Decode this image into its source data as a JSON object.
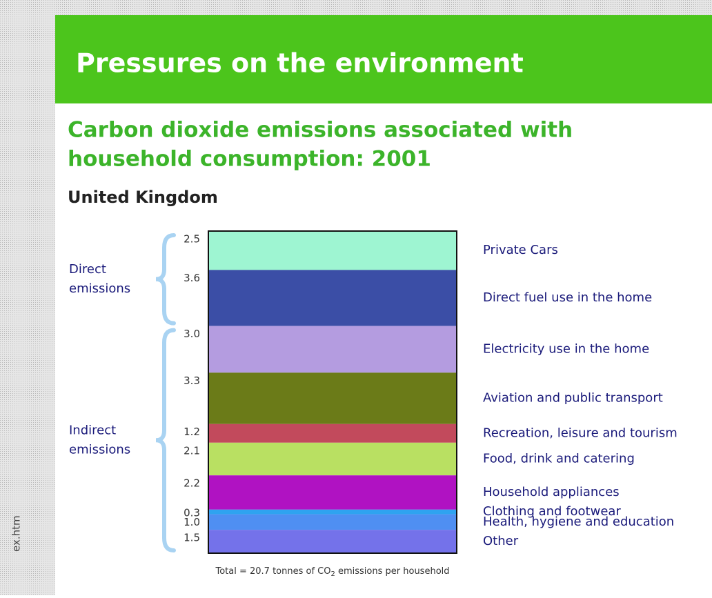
{
  "page": {
    "header": "Pressures on the environment",
    "side_text": "ex.htm"
  },
  "chart_data": {
    "type": "stacked-column",
    "title": [
      "Carbon dioxide emissions associated with",
      "household consumption: 2001"
    ],
    "subtitle": "United Kingdom",
    "categories": [
      "Private Cars",
      "Direct fuel use in the home",
      "Electricity use in the home",
      "Aviation and public transport",
      "Recreation, leisure and tourism",
      "Food, drink and catering",
      "Household appliances",
      "Clothing and footwear",
      "Health, hygiene and education",
      "Other"
    ],
    "values": [
      2.5,
      3.6,
      3.0,
      3.3,
      1.2,
      2.1,
      2.2,
      0.3,
      1.0,
      1.5
    ],
    "value_labels": [
      "2.5",
      "3.6",
      "3.0",
      "3.3",
      "1.2",
      "2.1",
      "2.2",
      "0.3",
      "1.0",
      "1.5"
    ],
    "colors": [
      "#9ef5d2",
      "#3b4ea6",
      "#b49ce0",
      "#6b7b18",
      "#c24a5c",
      "#b9e062",
      "#b012c2",
      "#2fa3f0",
      "#4f8ff2",
      "#7472ea"
    ],
    "groups": [
      {
        "label": [
          "Direct",
          "emissions"
        ],
        "count": 2
      },
      {
        "label": [
          "Indirect",
          "emissions"
        ],
        "count": 8
      }
    ],
    "footnote": [
      "Total = 20.7 tonnes of CO",
      "2",
      " emissions per household"
    ]
  }
}
